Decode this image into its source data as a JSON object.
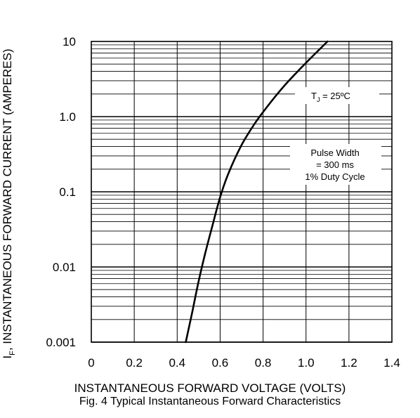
{
  "chart_data": {
    "type": "line",
    "title": "",
    "caption": "Fig. 4  Typical Instantaneous Forward Characteristics",
    "xlabel": "INSTANTANEOUS FORWARD VOLTAGE (VOLTS)",
    "ylabel_prefix": "I",
    "ylabel_sub": "F",
    "ylabel_rest": ", INSTANTANEOUS FORWARD CURRENT (AMPERES)",
    "x_scale": "linear",
    "y_scale": "log",
    "xlim": [
      0,
      1.4
    ],
    "ylim": [
      0.001,
      10
    ],
    "x_ticks": [
      "0",
      "0.2",
      "0.4",
      "0.6",
      "0.8",
      "1.0",
      "1.2",
      "1.4"
    ],
    "y_ticks": [
      "0.001",
      "0.01",
      "0.1",
      "1.0",
      "10"
    ],
    "grid": true,
    "series": [
      {
        "x": [
          0.44,
          0.47,
          0.5,
          0.53,
          0.56,
          0.6,
          0.64,
          0.7,
          0.76,
          0.8,
          0.86,
          0.92,
          1.0,
          1.1
        ],
        "y": [
          0.001,
          0.0025,
          0.0065,
          0.015,
          0.032,
          0.085,
          0.18,
          0.42,
          0.8,
          1.15,
          1.9,
          3.0,
          5.2,
          10.0
        ]
      }
    ],
    "annotations": [
      {
        "label": "T",
        "sub": "J",
        "rest": " = 25ºC"
      },
      {
        "lines": [
          "Pulse Width",
          "= 300 ms",
          "1% Duty Cycle"
        ]
      }
    ]
  }
}
